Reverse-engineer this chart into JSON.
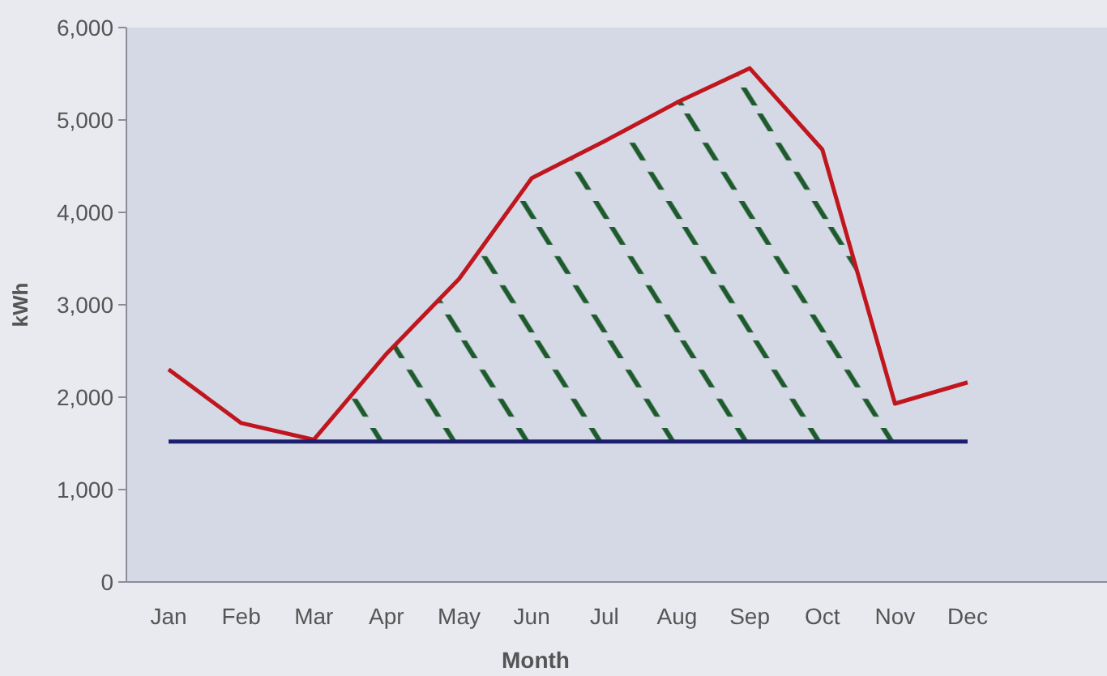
{
  "chart_data": {
    "type": "line",
    "xlabel": "Month",
    "ylabel": "kWh",
    "categories": [
      "Jan",
      "Feb",
      "Mar",
      "Apr",
      "May",
      "Jun",
      "Jul",
      "Aug",
      "Sep",
      "Oct",
      "Nov",
      "Dec"
    ],
    "series": [
      {
        "color": "#c0161e",
        "values": [
          2300,
          1720,
          1540,
          2470,
          3280,
          4370,
          4770,
          5190,
          5560,
          4680,
          1930,
          2160
        ],
        "lower": [
          null,
          null,
          1520,
          1520,
          1520,
          1520,
          1520,
          1520,
          1520,
          1520,
          1520,
          null
        ],
        "upper": [
          null,
          null,
          1540,
          2470,
          3280,
          4370,
          4770,
          5190,
          5560,
          4680,
          1930,
          null
        ]
      },
      {
        "color": "#1b1f6e",
        "values": [
          1520,
          1520,
          1520,
          1520,
          1520,
          1520,
          1520,
          1520,
          1520,
          1520,
          1520,
          1520
        ]
      }
    ],
    "ylim": [
      0,
      6000
    ],
    "yticks": [
      {
        "value": 0,
        "label": "0"
      },
      {
        "value": 1000,
        "label": "1,000"
      },
      {
        "value": 2000,
        "label": "2,000"
      },
      {
        "value": 3000,
        "label": "3,000"
      },
      {
        "value": 4000,
        "label": "4,000"
      },
      {
        "value": 5000,
        "label": "5,000"
      },
      {
        "value": 6000,
        "label": "6,000"
      }
    ],
    "grid": false,
    "marker": "none",
    "line_style": "solid"
  }
}
